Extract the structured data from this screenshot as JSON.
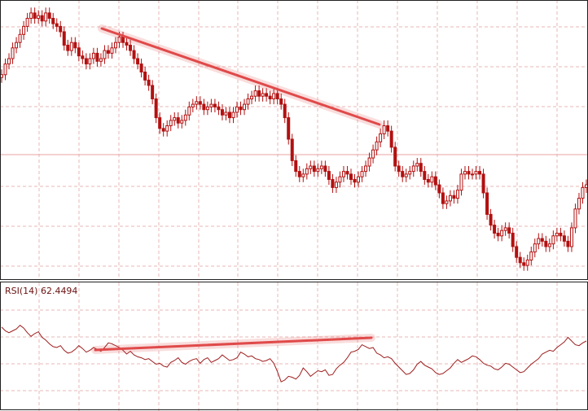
{
  "chart_data": [
    {
      "type": "candlestick",
      "title": "",
      "xlabel": "",
      "ylabel": "",
      "grid": true,
      "colors": {
        "candle": "#b21010",
        "trendline": "#e04a4a",
        "grid": "#e9b7b7"
      },
      "ylim": [
        0,
        100
      ],
      "series": [
        {
          "values": [
            74,
            78,
            80,
            84,
            86,
            89,
            92,
            95,
            97,
            95,
            96,
            94,
            97,
            95,
            93,
            92,
            90,
            85,
            83,
            86,
            84,
            81,
            80,
            78,
            80,
            82,
            79,
            80,
            83,
            82,
            84,
            86,
            88,
            86,
            85,
            83,
            80,
            78,
            75,
            72,
            70,
            65,
            58,
            54,
            53,
            55,
            57,
            58,
            56,
            57,
            59,
            62,
            63,
            64,
            63,
            61,
            62,
            63,
            62,
            61,
            59,
            60,
            58,
            60,
            62,
            61,
            63,
            65,
            66,
            68,
            66,
            67,
            66,
            65,
            67,
            65,
            63,
            58,
            50,
            42,
            38,
            36,
            37,
            39,
            40,
            38,
            39,
            40,
            38,
            35,
            32,
            34,
            36,
            38,
            37,
            35,
            34,
            36,
            38,
            40,
            43,
            46,
            49,
            52,
            55,
            53,
            47,
            40,
            38,
            36,
            37,
            38,
            40,
            41,
            38,
            35,
            34,
            36,
            33,
            30,
            26,
            27,
            29,
            28,
            31,
            37,
            38,
            37,
            37,
            38,
            37,
            30,
            22,
            18,
            15,
            14,
            16,
            17,
            15,
            10,
            6,
            4,
            3,
            5,
            8,
            11,
            13,
            12,
            10,
            11,
            14,
            15,
            14,
            12,
            10,
            17,
            24,
            28,
            32,
            33
          ]
        },
        {
          "values": [
            79,
            75,
            73,
            75,
            77,
            81,
            78,
            73,
            69,
            72,
            74,
            68,
            65,
            61,
            58,
            57,
            59,
            54,
            51,
            52,
            55,
            59,
            56,
            52,
            54,
            57,
            55,
            53,
            57,
            62,
            61,
            59,
            57,
            54,
            50,
            53,
            49,
            47,
            46,
            44,
            45,
            42,
            39,
            40,
            37,
            36,
            41,
            43,
            46,
            41,
            39,
            42,
            44,
            45,
            40,
            44,
            46,
            41,
            43,
            45,
            49,
            46,
            43,
            44,
            46,
            52,
            50,
            47,
            48,
            45,
            44,
            42,
            43,
            45,
            40,
            31,
            20,
            22,
            26,
            25,
            23,
            27,
            35,
            31,
            26,
            29,
            32,
            31,
            33,
            27,
            28,
            34,
            38,
            41,
            46,
            52,
            53,
            55,
            60,
            58,
            56,
            57,
            51,
            49,
            46,
            47,
            45,
            40,
            36,
            32,
            28,
            29,
            33,
            39,
            42,
            38,
            36,
            34,
            30,
            28,
            29,
            32,
            35,
            40,
            44,
            41,
            43,
            45,
            48,
            47,
            44,
            40,
            38,
            37,
            34,
            33,
            36,
            40,
            39,
            36,
            33,
            30,
            31,
            35,
            39,
            42,
            45,
            50,
            52,
            54,
            53,
            57,
            60,
            63,
            68,
            64,
            60,
            59,
            62,
            64
          ]
        }
      ]
    },
    {
      "type": "line",
      "title": "RSI(14) 62.4494"
    }
  ]
}
